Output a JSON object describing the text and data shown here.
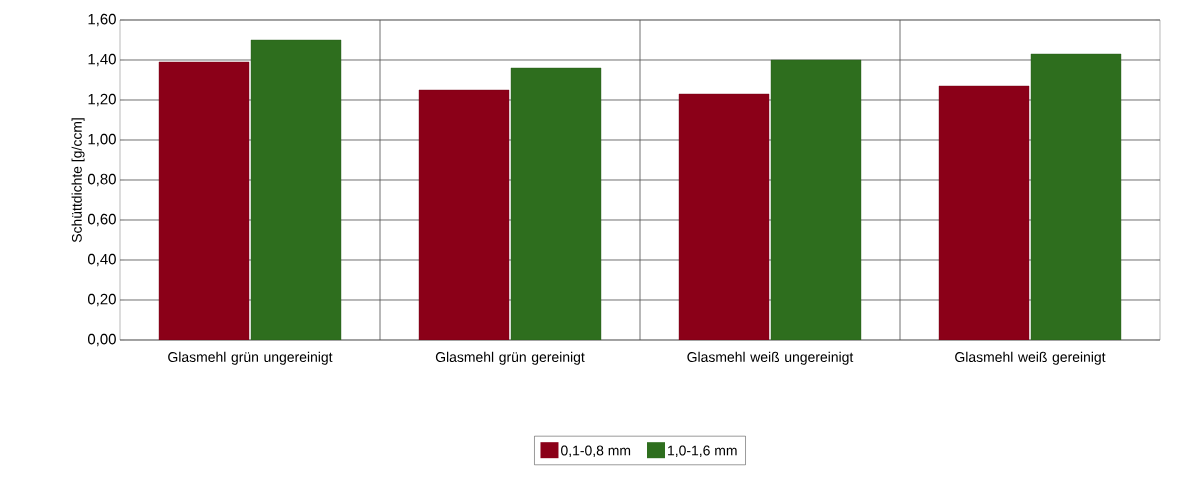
{
  "chart_data": {
    "type": "bar",
    "ylabel": "Schüttdichte [g/ccm]",
    "categories": [
      "Glasmehl grün ungereinigt",
      "Glasmehl grün gereinigt",
      "Glasmehl weiß ungereinigt",
      "Glasmehl weiß gereinigt"
    ],
    "series": [
      {
        "name": "0,1-0,8 mm",
        "color": "#8b0018",
        "values": [
          1.39,
          1.25,
          1.23,
          1.27
        ]
      },
      {
        "name": "1,0-1,6 mm",
        "color": "#2e6e1e",
        "values": [
          1.5,
          1.36,
          1.4,
          1.43
        ]
      }
    ],
    "ylim": [
      0,
      1.6
    ],
    "yticks": [
      {
        "value": 0,
        "label": "0,00"
      },
      {
        "value": 0.2,
        "label": "0,20"
      },
      {
        "value": 0.4,
        "label": "0,40"
      },
      {
        "value": 0.6,
        "label": "0,60"
      },
      {
        "value": 0.8,
        "label": "0,80"
      },
      {
        "value": 1.0,
        "label": "1,00"
      },
      {
        "value": 1.2,
        "label": "1,20"
      },
      {
        "value": 1.4,
        "label": "1,40"
      },
      {
        "value": 1.6,
        "label": "1,60"
      }
    ],
    "grid": true,
    "legend": "bottom"
  }
}
